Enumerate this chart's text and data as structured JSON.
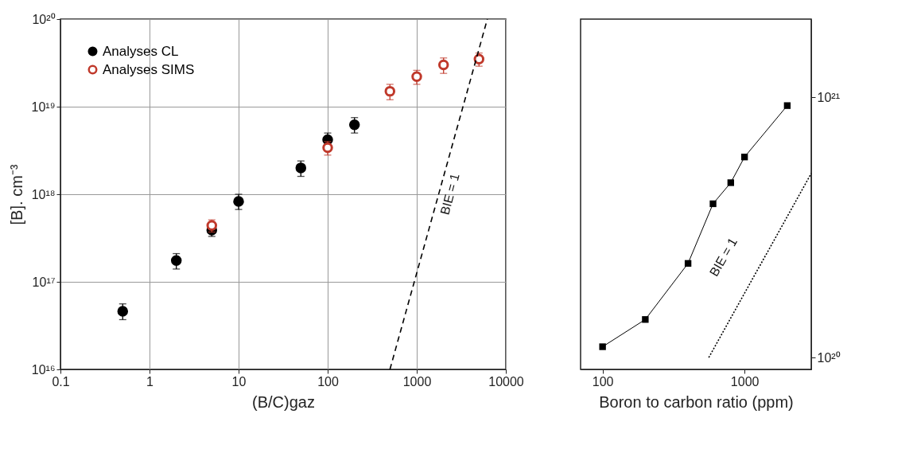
{
  "chart_data": [
    {
      "type": "scatter",
      "xlabel": "(B/C)gaz",
      "ylabel": "[B]. cm⁻³",
      "log": "xy",
      "grid": true,
      "legend": "top left",
      "marker": "circle",
      "xlim": [
        0.1,
        10000
      ],
      "xticks": [
        0.1,
        1,
        10,
        100,
        1000,
        10000
      ],
      "ylim": [
        1e+16,
        1e+20
      ],
      "yticks": [
        {
          "value": 1e+16,
          "label": "10¹⁶"
        },
        {
          "value": 1e+17,
          "label": "10¹⁷"
        },
        {
          "value": 1e+18,
          "label": "10¹⁸"
        },
        {
          "value": 1e+19,
          "label": "10¹⁹"
        },
        {
          "value": 1e+20,
          "label": "10²⁰"
        }
      ],
      "series": [
        {
          "name": "Analyses CL",
          "color": "#000000",
          "x": [
            0.5,
            2,
            5,
            10,
            50,
            100,
            200
          ],
          "values": [
            4.6e+16,
            1.75e+17,
            3.9e+17,
            8.3e+17,
            2e+18,
            4.2e+18,
            6.2e+18
          ],
          "errors": [
            [
              3.7e+16,
              5.6e+16
            ],
            [
              1.4e+17,
              2.1e+17
            ],
            [
              3.3e+17,
              4.6e+17
            ],
            [
              6.7e+17,
              1e+18
            ],
            [
              1.6e+18,
              2.4e+18
            ],
            [
              3.5e+18,
              5e+18
            ],
            [
              5e+18,
              7.5e+18
            ]
          ]
        },
        {
          "name": "Analyses SIMS",
          "color": "#c0392b",
          "x": [
            5,
            100,
            500,
            1000,
            2000,
            5000
          ],
          "values": [
            4.4e+17,
            3.4e+18,
            1.5e+19,
            2.2e+19,
            3e+19,
            3.5e+19
          ],
          "errors": [
            [
              3.7e+17,
              5.1e+17
            ],
            [
              2.8e+18,
              4e+18
            ],
            [
              1.2e+19,
              1.8e+19
            ],
            [
              1.8e+19,
              2.6e+19
            ],
            [
              2.4e+19,
              3.6e+19
            ],
            [
              2.9e+19,
              4.1e+19
            ]
          ]
        },
        {
          "type": "line",
          "color": "#000000",
          "line_style": "dashed",
          "marker": "none",
          "x": [
            500,
            6200
          ],
          "values": [
            1e+16,
            1e+20
          ]
        }
      ],
      "annotations": [
        "BIE = 1"
      ]
    },
    {
      "type": "line",
      "xlabel": "Boron to carbon ratio (ppm)",
      "log": "xy",
      "grid": false,
      "marker": "square",
      "xlim": [
        70,
        2950
      ],
      "xticks": [
        100,
        1000
      ],
      "ylim": [
        9e+19,
        2e+21
      ],
      "yticks": [
        {
          "value": 1e+20,
          "label": "10²⁰"
        },
        {
          "value": 1e+21,
          "label": "10²¹"
        }
      ],
      "series": [
        {
          "color": "#000000",
          "line_style": "solid",
          "x": [
            100,
            200,
            400,
            600,
            800,
            1000,
            2000
          ],
          "values": [
            1.1e+20,
            1.4e+20,
            2.3e+20,
            3.9e+20,
            4.7e+20,
            5.9e+20,
            9.3e+20
          ]
        },
        {
          "color": "#000000",
          "line_style": "dotted",
          "marker": "none",
          "x": [
            560,
            2950
          ],
          "values": [
            1e+20,
            5.1e+20
          ]
        }
      ],
      "annotations": [
        "BIE = 1"
      ]
    }
  ]
}
